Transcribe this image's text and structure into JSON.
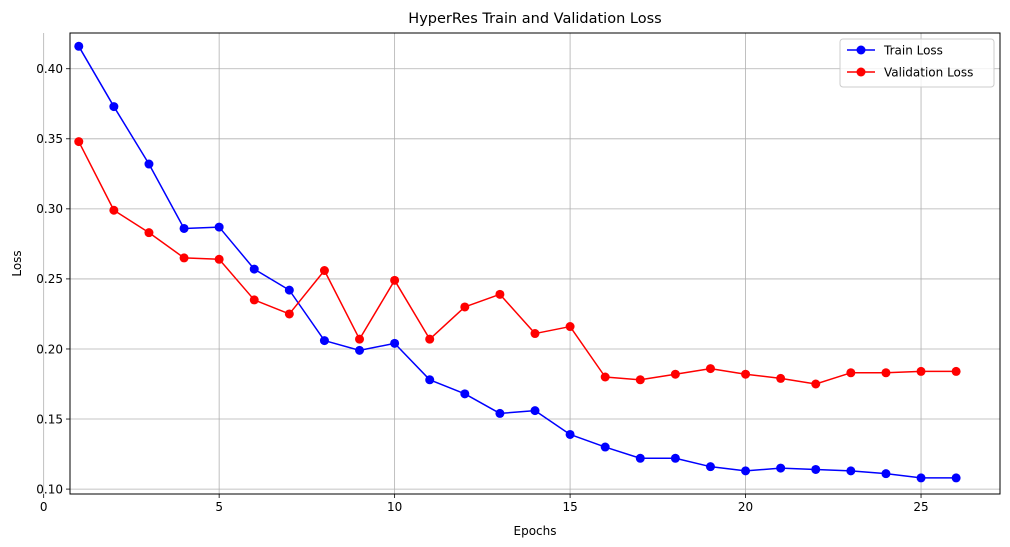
{
  "chart_data": {
    "type": "line",
    "title": "HyperRes Train and Validation Loss",
    "xlabel": "Epochs",
    "ylabel": "Loss",
    "xlim": [
      0.75,
      27.25
    ],
    "ylim": [
      0.0965,
      0.4255
    ],
    "xticks": [
      0,
      5,
      10,
      15,
      20,
      25
    ],
    "yticks": [
      0.1,
      0.15,
      0.2,
      0.25,
      0.3,
      0.35,
      0.4
    ],
    "grid": true,
    "legend_position": "top-right",
    "x": [
      1,
      2,
      3,
      4,
      5,
      6,
      7,
      8,
      9,
      10,
      11,
      12,
      13,
      14,
      15,
      16,
      17,
      18,
      19,
      20,
      21,
      22,
      23,
      24,
      25,
      26
    ],
    "series": [
      {
        "name": "Train Loss",
        "color": "#0000ff",
        "marker": "circle",
        "values": [
          0.416,
          0.373,
          0.332,
          0.286,
          0.287,
          0.257,
          0.242,
          0.206,
          0.199,
          0.204,
          0.178,
          0.168,
          0.154,
          0.156,
          0.139,
          0.13,
          0.122,
          0.122,
          0.116,
          0.113,
          0.115,
          0.114,
          0.113,
          0.111,
          0.108,
          0.108
        ]
      },
      {
        "name": "Validation Loss",
        "color": "#ff0000",
        "marker": "circle",
        "values": [
          0.348,
          0.299,
          0.283,
          0.265,
          0.264,
          0.235,
          0.225,
          0.256,
          0.207,
          0.249,
          0.207,
          0.23,
          0.239,
          0.211,
          0.216,
          0.18,
          0.178,
          0.182,
          0.186,
          0.182,
          0.179,
          0.175,
          0.183,
          0.183,
          0.184,
          0.184
        ]
      }
    ]
  }
}
